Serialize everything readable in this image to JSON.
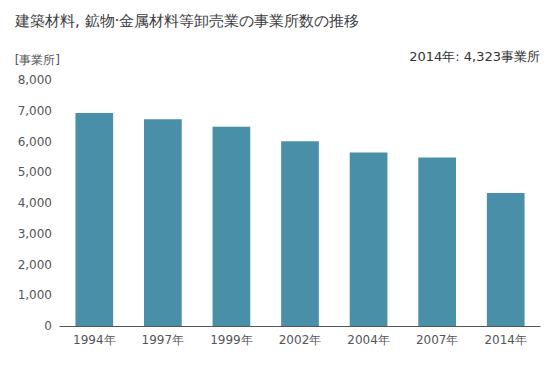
{
  "chart_data": {
    "type": "bar",
    "title": "建築材料, 鉱物·金属材料等卸売業の事業所数の推移",
    "ylabel": "[事業所]",
    "annotation": "2014年: 4,323事業所",
    "categories": [
      "1994年",
      "1997年",
      "1999年",
      "2002年",
      "2004年",
      "2007年",
      "2014年"
    ],
    "values": [
      6930,
      6720,
      6480,
      6010,
      5640,
      5480,
      4323
    ],
    "color": "#4a8fa8",
    "ylim": [
      0,
      8000
    ],
    "yticks": [
      0,
      {
        "value": 1000,
        "label": "1,000"
      },
      {
        "value": 2000,
        "label": "2,000"
      },
      {
        "value": 3000,
        "label": "3,000"
      },
      {
        "value": 4000,
        "label": "4,000"
      },
      {
        "value": 5000,
        "label": "5,000"
      },
      {
        "value": 6000,
        "label": "6,000"
      },
      {
        "value": 7000,
        "label": "7,000"
      },
      {
        "value": 8000,
        "label": "8,000"
      }
    ],
    "grid": false
  }
}
